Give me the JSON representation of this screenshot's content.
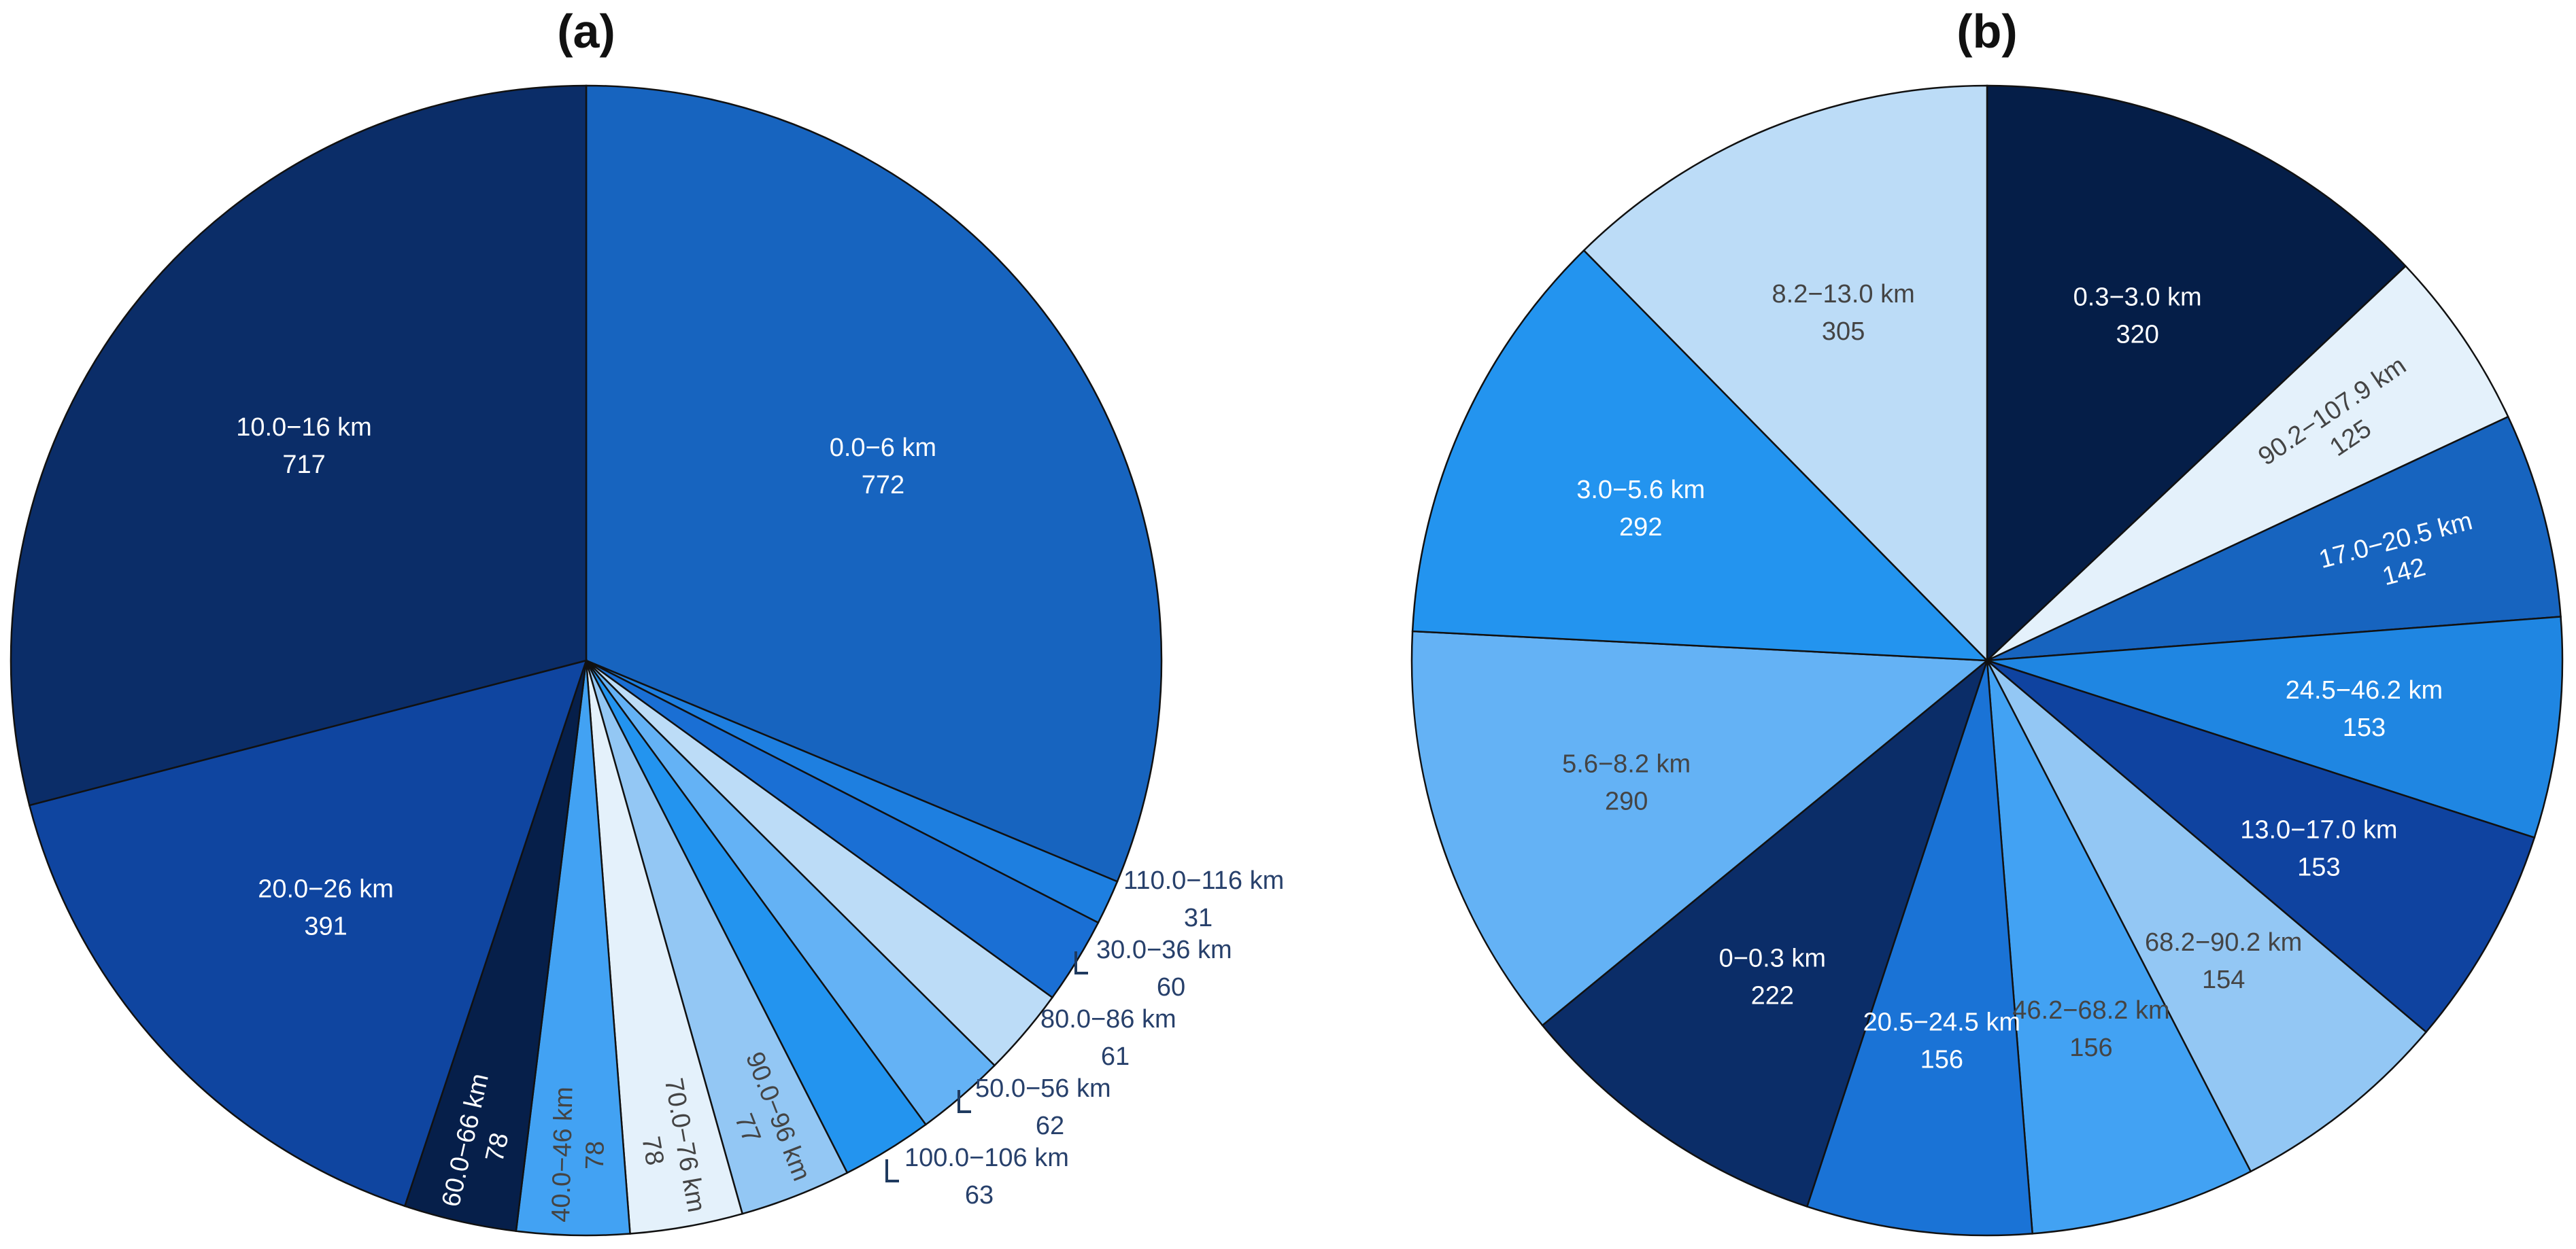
{
  "chart_data": [
    {
      "type": "pie",
      "title": "(a)",
      "start_angle_deg": 90,
      "direction": "clockwise",
      "slices": [
        {
          "label": "0.0−6 km",
          "value": 772,
          "color": "#1764bf",
          "text_color": "#ffffff",
          "placement": "inside",
          "rotate": false
        },
        {
          "label": "110.0−116 km",
          "value": 31,
          "color": "#1e7fe0",
          "text_color": "#27406b",
          "placement": "outside",
          "rotate": false
        },
        {
          "label": "30.0−36 km",
          "value": 60,
          "color": "#1a6fd4",
          "text_color": "#27406b",
          "placement": "outside",
          "rotate": false
        },
        {
          "label": "80.0−86 km",
          "value": 61,
          "color": "#bcdcf7",
          "text_color": "#27406b",
          "placement": "outside",
          "rotate": false
        },
        {
          "label": "50.0−56 km",
          "value": 62,
          "color": "#64b2f5",
          "text_color": "#27406b",
          "placement": "outside",
          "rotate": false
        },
        {
          "label": "100.0−106 km",
          "value": 63,
          "color": "#2394ef",
          "text_color": "#27406b",
          "placement": "outside",
          "rotate": false
        },
        {
          "label": "90.0−96 km",
          "value": 77,
          "color": "#93c7f4",
          "text_color": "#444444",
          "placement": "inside",
          "rotate": true
        },
        {
          "label": "70.0−76 km",
          "value": 78,
          "color": "#e4f1fb",
          "text_color": "#444444",
          "placement": "inside",
          "rotate": true
        },
        {
          "label": "40.0−46 km",
          "value": 78,
          "color": "#42a2f3",
          "text_color": "#444444",
          "placement": "inside",
          "rotate": true
        },
        {
          "label": "60.0−66 km",
          "value": 78,
          "color": "#061f4a",
          "text_color": "#ffffff",
          "placement": "inside",
          "rotate": true
        },
        {
          "label": "20.0−26 km",
          "value": 391,
          "color": "#0f45a0",
          "text_color": "#ffffff",
          "placement": "inside",
          "rotate": false
        },
        {
          "label": "10.0−16 km",
          "value": 717,
          "color": "#0b2d68",
          "text_color": "#ffffff",
          "placement": "inside",
          "rotate": false
        }
      ]
    },
    {
      "type": "pie",
      "title": "(b)",
      "start_angle_deg": 90,
      "direction": "clockwise",
      "slices": [
        {
          "label": "0.3−3.0 km",
          "value": 320,
          "color": "#051e48",
          "text_color": "#ffffff",
          "placement": "inside",
          "rotate": false
        },
        {
          "label": "90.2−107.9 km",
          "value": 125,
          "color": "#e4f1fb",
          "text_color": "#444444",
          "placement": "inside",
          "rotate": true
        },
        {
          "label": "17.0−20.5 km",
          "value": 142,
          "color": "#1764bf",
          "text_color": "#ffffff",
          "placement": "inside",
          "rotate": true
        },
        {
          "label": "24.5−46.2 km",
          "value": 153,
          "color": "#1f86e2",
          "text_color": "#ffffff",
          "placement": "inside",
          "rotate": false
        },
        {
          "label": "13.0−17.0 km",
          "value": 153,
          "color": "#0f43a0",
          "text_color": "#ffffff",
          "placement": "inside",
          "rotate": false
        },
        {
          "label": "68.2−90.2 km",
          "value": 154,
          "color": "#93c7f4",
          "text_color": "#444444",
          "placement": "inside",
          "rotate": false
        },
        {
          "label": "46.2−68.2 km",
          "value": 156,
          "color": "#42a2f3",
          "text_color": "#444444",
          "placement": "inside",
          "rotate": false
        },
        {
          "label": "20.5−24.5 km",
          "value": 156,
          "color": "#1a73d6",
          "text_color": "#ffffff",
          "placement": "inside",
          "rotate": false
        },
        {
          "label": "0−0.3 km",
          "value": 222,
          "color": "#0b2d68",
          "text_color": "#ffffff",
          "placement": "inside",
          "rotate": false
        },
        {
          "label": "5.6−8.2 km",
          "value": 290,
          "color": "#64b2f5",
          "text_color": "#444444",
          "placement": "inside",
          "rotate": false
        },
        {
          "label": "3.0−5.6 km",
          "value": 292,
          "color": "#2394ef",
          "text_color": "#ffffff",
          "placement": "inside",
          "rotate": false
        },
        {
          "label": "8.2−13.0 km",
          "value": 305,
          "color": "#bcdcf7",
          "text_color": "#444444",
          "placement": "inside",
          "rotate": false
        }
      ]
    }
  ]
}
